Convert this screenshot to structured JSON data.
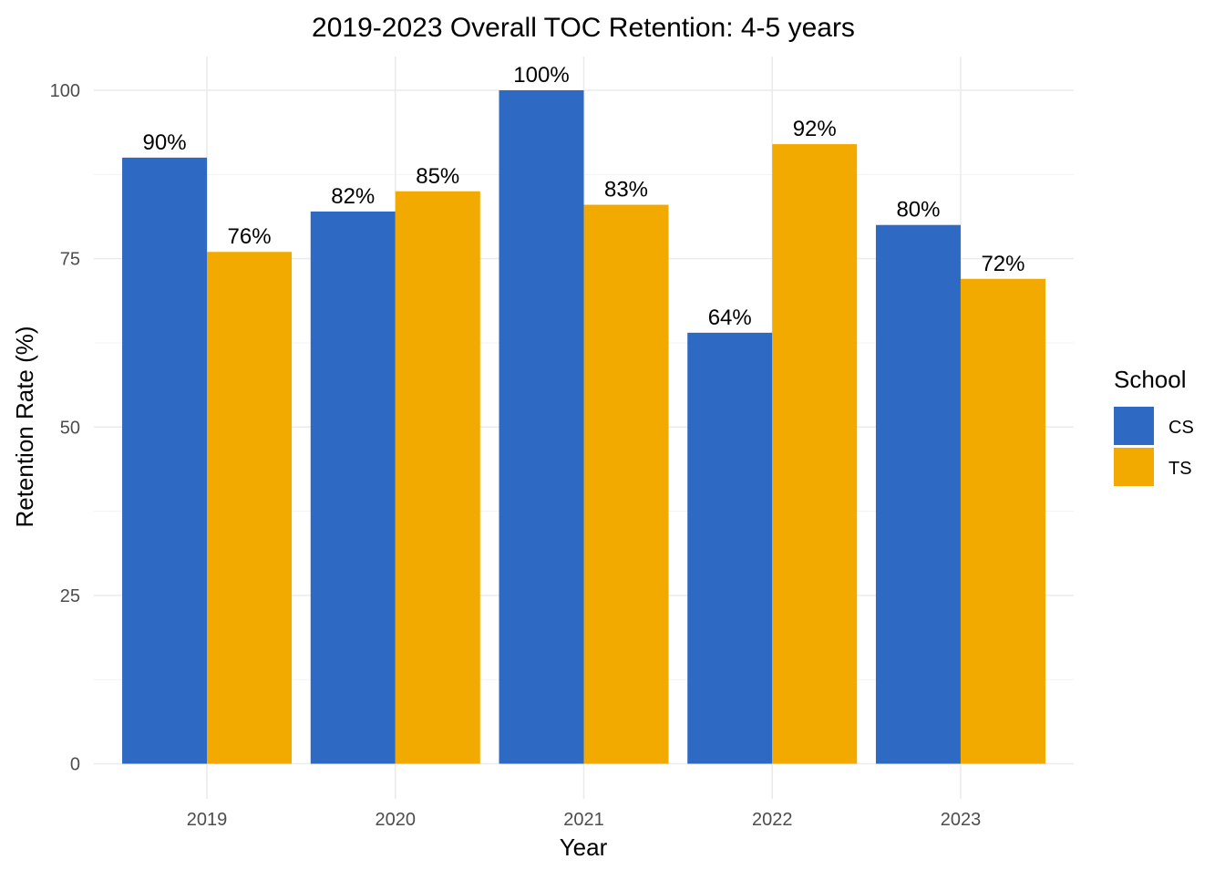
{
  "chart_data": {
    "type": "bar",
    "title": "2019-2023 Overall TOC Retention: 4-5 years",
    "xlabel": "Year",
    "ylabel": "Retention Rate (%)",
    "categories": [
      "2019",
      "2020",
      "2021",
      "2022",
      "2023"
    ],
    "series": [
      {
        "name": "CS",
        "color": "#2e69c4",
        "values": [
          90,
          82,
          100,
          64,
          80
        ],
        "labels": [
          "90%",
          "82%",
          "100%",
          "64%",
          "80%"
        ]
      },
      {
        "name": "TS",
        "color": "#f2a900",
        "values": [
          76,
          85,
          83,
          92,
          72
        ],
        "labels": [
          "76%",
          "85%",
          "83%",
          "92%",
          "72%"
        ]
      }
    ],
    "ylim": [
      0,
      105
    ],
    "yticks": [
      0,
      25,
      50,
      75,
      100
    ],
    "ytick_labels": [
      "0",
      "25",
      "50",
      "75",
      "100"
    ],
    "grid": true,
    "legend": {
      "title": "School",
      "position": "right"
    }
  }
}
